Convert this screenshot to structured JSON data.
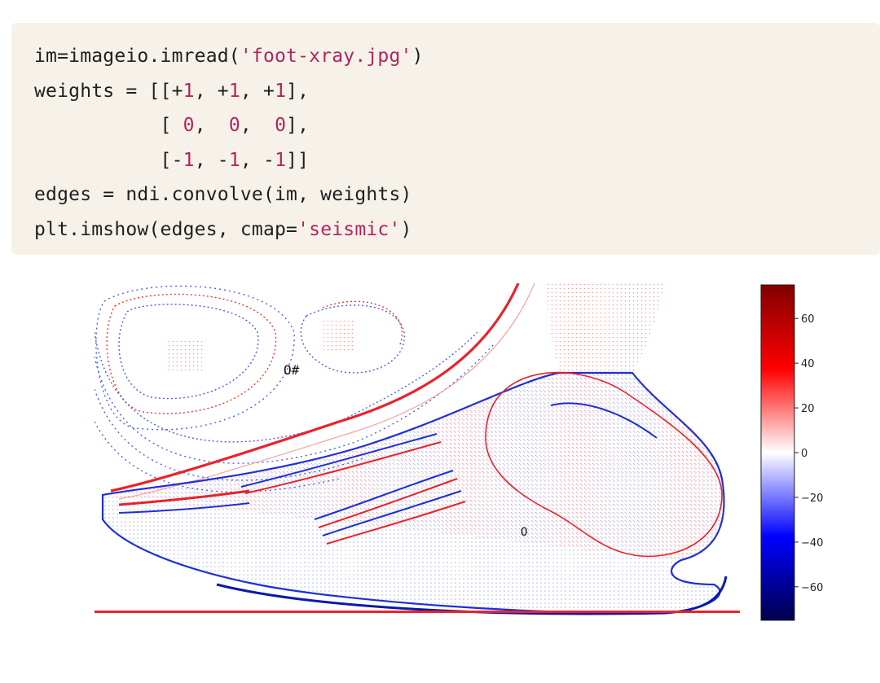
{
  "code": {
    "lines": [
      [
        {
          "t": "im=imageio.imread(",
          "c": "plain"
        },
        {
          "t": "'foot-xray.jpg'",
          "c": "str"
        },
        {
          "t": ")",
          "c": "plain"
        }
      ],
      [
        {
          "t": "weights = [[+",
          "c": "plain"
        },
        {
          "t": "1",
          "c": "num"
        },
        {
          "t": ", +",
          "c": "plain"
        },
        {
          "t": "1",
          "c": "num"
        },
        {
          "t": ", +",
          "c": "plain"
        },
        {
          "t": "1",
          "c": "num"
        },
        {
          "t": "],",
          "c": "plain"
        }
      ],
      [
        {
          "t": "           [ ",
          "c": "plain"
        },
        {
          "t": "0",
          "c": "num"
        },
        {
          "t": ",  ",
          "c": "plain"
        },
        {
          "t": "0",
          "c": "num"
        },
        {
          "t": ",  ",
          "c": "plain"
        },
        {
          "t": "0",
          "c": "num"
        },
        {
          "t": "],",
          "c": "plain"
        }
      ],
      [
        {
          "t": "           [-",
          "c": "plain"
        },
        {
          "t": "1",
          "c": "num"
        },
        {
          "t": ", -",
          "c": "plain"
        },
        {
          "t": "1",
          "c": "num"
        },
        {
          "t": ", -",
          "c": "plain"
        },
        {
          "t": "1",
          "c": "num"
        },
        {
          "t": "]]",
          "c": "plain"
        }
      ],
      [
        {
          "t": "edges = ndi.convolve(im, weights)",
          "c": "plain"
        }
      ],
      [
        {
          "t": "plt.imshow(edges, cmap=",
          "c": "plain"
        },
        {
          "t": "'seismic'",
          "c": "str"
        },
        {
          "t": ")",
          "c": "plain"
        }
      ]
    ]
  },
  "figure": {
    "image_description_icon": "foot-xray-edges-image",
    "colorbar": {
      "colormap": "seismic",
      "range": [
        -75,
        75
      ],
      "ticks": [
        60,
        40,
        20,
        0,
        -20,
        -40,
        -60
      ],
      "tick_labels": [
        "60",
        "40",
        "20",
        "0",
        "−20",
        "−40",
        "−60"
      ]
    },
    "colors": {
      "positive": "#e8232b",
      "negative": "#1c2fd6",
      "background": "#ffffff"
    }
  }
}
